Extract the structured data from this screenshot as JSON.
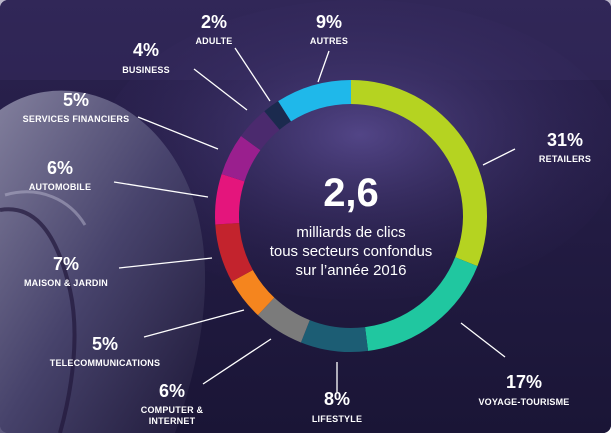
{
  "chart_data": {
    "type": "pie",
    "donut": true,
    "center": {
      "value": "2,6",
      "lines": [
        "milliards de clics",
        "tous secteurs confondus",
        "sur l’année 2016"
      ]
    },
    "slices": [
      {
        "label": "RETAILERS",
        "value": 31,
        "value_text": "31%",
        "color": "#b5d321"
      },
      {
        "label": "VOYAGE-TOURISME",
        "value": 17,
        "value_text": "17%",
        "color": "#20c7a0"
      },
      {
        "label": "LIFESTYLE",
        "value": 8,
        "value_text": "8%",
        "color": "#1c5d74"
      },
      {
        "label": [
          "COMPUTER &",
          "INTERNET"
        ],
        "value": 6,
        "value_text": "6%",
        "color": "#7b7b7b"
      },
      {
        "label": "TELECOMMUNICATIONS",
        "value": 5,
        "value_text": "5%",
        "color": "#f5851e"
      },
      {
        "label": "MAISON & JARDIN",
        "value": 7,
        "value_text": "7%",
        "color": "#c3232d"
      },
      {
        "label": "AUTOMOBILE",
        "value": 6,
        "value_text": "6%",
        "color": "#e4157c"
      },
      {
        "label": "SERVICES FINANCIERS",
        "value": 5,
        "value_text": "5%",
        "color": "#9a1f8e"
      },
      {
        "label": "BUSINESS",
        "value": 4,
        "value_text": "4%",
        "color": "#4b2a6e"
      },
      {
        "label": "ADULTE",
        "value": 2,
        "value_text": "2%",
        "color": "#1b2a4e"
      },
      {
        "label": "AUTRES",
        "value": 9,
        "value_text": "9%",
        "color": "#1fb8ea"
      }
    ]
  }
}
